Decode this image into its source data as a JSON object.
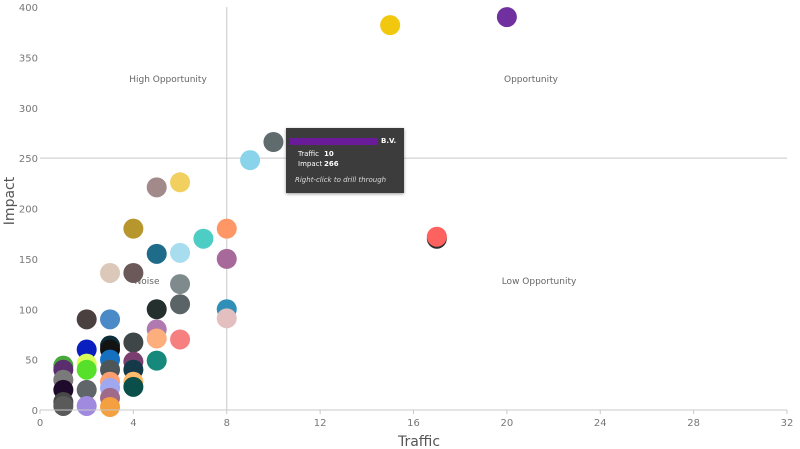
{
  "chart_data": {
    "type": "scatter",
    "xlabel": "Traffic",
    "ylabel": "Impact",
    "xlim": [
      0,
      32
    ],
    "ylim": [
      0,
      400
    ],
    "x_ticks": [
      "0",
      "4",
      "8",
      "12",
      "16",
      "20",
      "24",
      "28",
      "32"
    ],
    "y_ticks": [
      "0",
      "50",
      "100",
      "150",
      "200",
      "250",
      "300",
      "350",
      "400"
    ],
    "reference_lines": {
      "x": 8,
      "y": 250
    },
    "quadrant_labels": {
      "top_left": "High Opportunity",
      "top_right": "Opportunity",
      "bottom_left": "Noise",
      "bottom_right": "Low Opportunity"
    },
    "points": [
      {
        "x": 20,
        "y": 390,
        "color": "#7030a0"
      },
      {
        "x": 15,
        "y": 382,
        "color": "#f2c80f"
      },
      {
        "x": 10,
        "y": 266,
        "color": "#5f6b6d"
      },
      {
        "x": 9,
        "y": 248,
        "color": "#8ad4eb"
      },
      {
        "x": 6,
        "y": 226,
        "color": "#f2d060"
      },
      {
        "x": 5,
        "y": 221,
        "color": "#a38a8a"
      },
      {
        "x": 4,
        "y": 180,
        "color": "#b8962e"
      },
      {
        "x": 8,
        "y": 180,
        "color": "#fe9666"
      },
      {
        "x": 7,
        "y": 170,
        "color": "#4ecdc4"
      },
      {
        "x": 17,
        "y": 170,
        "color": "#2d2d2d"
      },
      {
        "x": 17,
        "y": 172,
        "color": "#fd625e"
      },
      {
        "x": 5,
        "y": 155,
        "color": "#1f6b8a"
      },
      {
        "x": 6,
        "y": 156,
        "color": "#a8ddf0"
      },
      {
        "x": 8,
        "y": 150,
        "color": "#a66999"
      },
      {
        "x": 3,
        "y": 136,
        "color": "#dcc8b8"
      },
      {
        "x": 4,
        "y": 136,
        "color": "#6b5858"
      },
      {
        "x": 6,
        "y": 125,
        "color": "#7f8a8c"
      },
      {
        "x": 6,
        "y": 105,
        "color": "#5a6466"
      },
      {
        "x": 5,
        "y": 100,
        "color": "#23302e"
      },
      {
        "x": 8,
        "y": 100,
        "color": "#2f8fb8"
      },
      {
        "x": 8,
        "y": 91,
        "color": "#e3bfc0"
      },
      {
        "x": 2,
        "y": 90,
        "color": "#4a4040"
      },
      {
        "x": 3,
        "y": 90,
        "color": "#4a8ac7"
      },
      {
        "x": 5,
        "y": 80,
        "color": "#b07ab0"
      },
      {
        "x": 5,
        "y": 71,
        "color": "#fcae7c"
      },
      {
        "x": 6,
        "y": 70,
        "color": "#f68080"
      },
      {
        "x": 4,
        "y": 67,
        "color": "#3f4647"
      },
      {
        "x": 2,
        "y": 60,
        "color": "#0a1fbf"
      },
      {
        "x": 3,
        "y": 64,
        "color": "#0e2d3a"
      },
      {
        "x": 3,
        "y": 60,
        "color": "#131313"
      },
      {
        "x": 4,
        "y": 48,
        "color": "#7a3f6e"
      },
      {
        "x": 5,
        "y": 49,
        "color": "#17897c"
      },
      {
        "x": 3,
        "y": 50,
        "color": "#1570c0"
      },
      {
        "x": 2,
        "y": 46,
        "color": "#d8ff5a"
      },
      {
        "x": 2,
        "y": 40,
        "color": "#56e02a"
      },
      {
        "x": 1,
        "y": 44,
        "color": "#48a83c"
      },
      {
        "x": 1,
        "y": 40,
        "color": "#5a2d6e"
      },
      {
        "x": 3,
        "y": 40,
        "color": "#4c5557"
      },
      {
        "x": 4,
        "y": 40,
        "color": "#143a4a"
      },
      {
        "x": 1,
        "y": 30,
        "color": "#7a7a7a"
      },
      {
        "x": 3,
        "y": 28,
        "color": "#ff9e6e"
      },
      {
        "x": 4,
        "y": 28,
        "color": "#fdbb6b"
      },
      {
        "x": 3,
        "y": 22,
        "color": "#a0a8f0"
      },
      {
        "x": 4,
        "y": 23,
        "color": "#0b4f4a"
      },
      {
        "x": 2,
        "y": 20,
        "color": "#5f6568"
      },
      {
        "x": 1,
        "y": 20,
        "color": "#1e0a2a"
      },
      {
        "x": 3,
        "y": 12,
        "color": "#a06a8a"
      },
      {
        "x": 1,
        "y": 8,
        "color": "#484848"
      },
      {
        "x": 1,
        "y": 4,
        "color": "#5a5a5a"
      },
      {
        "x": 2,
        "y": 4,
        "color": "#a08ae0"
      },
      {
        "x": 3,
        "y": 3,
        "color": "#f5a040"
      }
    ],
    "tooltip": {
      "name": "B.V.",
      "bar_color": "#6a1b9a",
      "rows": [
        {
          "key": "Traffic",
          "value": "10"
        },
        {
          "key": "Impact",
          "value": "266"
        }
      ],
      "hint": "Right-click to drill through"
    }
  }
}
